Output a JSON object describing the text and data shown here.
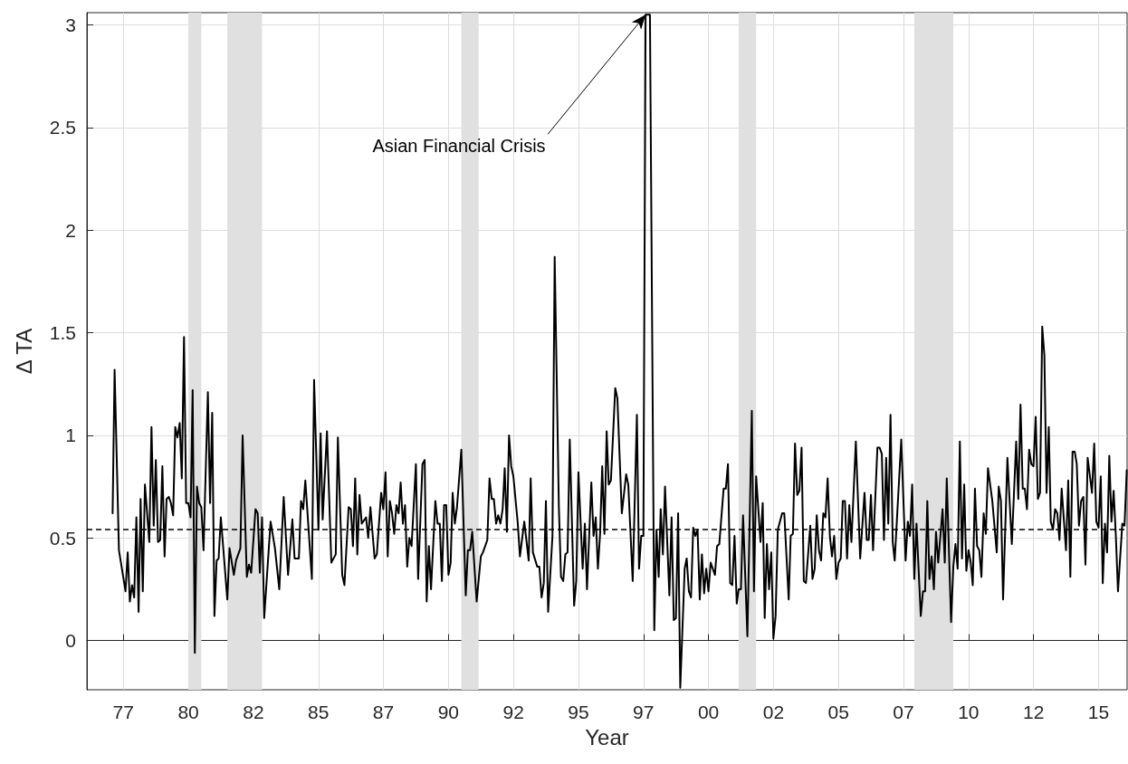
{
  "chart_data": {
    "type": "line",
    "xlabel": "Year",
    "ylabel": "Δ TA",
    "annotations": [
      {
        "text": "Asian Financial Crisis",
        "x": "1997-08",
        "y": 3.05
      }
    ],
    "xlim": [
      "1976-02-06",
      "2016-02-06"
    ],
    "xticks": [
      {
        "value": "1977-07-02",
        "label": "77"
      },
      {
        "value": "1980-01-01",
        "label": "80"
      },
      {
        "value": "1982-07-02",
        "label": "82"
      },
      {
        "value": "1985-01-01",
        "label": "85"
      },
      {
        "value": "1987-07-02",
        "label": "87"
      },
      {
        "value": "1990-01-01",
        "label": "90"
      },
      {
        "value": "1992-07-02",
        "label": "92"
      },
      {
        "value": "1995-01-01",
        "label": "95"
      },
      {
        "value": "1997-07-02",
        "label": "97"
      },
      {
        "value": "2000-01-01",
        "label": "00"
      },
      {
        "value": "2002-07-02",
        "label": "02"
      },
      {
        "value": "2005-01-01",
        "label": "05"
      },
      {
        "value": "2007-07-02",
        "label": "07"
      },
      {
        "value": "2010-01-01",
        "label": "10"
      },
      {
        "value": "2012-07-02",
        "label": "12"
      },
      {
        "value": "2015-01-01",
        "label": "15"
      }
    ],
    "ylim": [
      -0.24,
      3.06
    ],
    "yticks": [
      0,
      0.5,
      1,
      1.5,
      2,
      2.5,
      3
    ],
    "grid": true,
    "marker": "none",
    "line_style": "solid",
    "ref_lines": [
      {
        "axis": "y",
        "value": 0.54,
        "color": "#000000",
        "line_style": "dashed"
      }
    ],
    "bands": [
      {
        "axis": "x",
        "from": "1980-01",
        "to": "1980-07",
        "color": "#e0e0e0"
      },
      {
        "axis": "x",
        "from": "1981-07",
        "to": "1982-11",
        "color": "#e0e0e0"
      },
      {
        "axis": "x",
        "from": "1990-07",
        "to": "1991-03",
        "color": "#e0e0e0"
      },
      {
        "axis": "x",
        "from": "2001-03",
        "to": "2001-11",
        "color": "#e0e0e0"
      },
      {
        "axis": "x",
        "from": "2007-12",
        "to": "2009-06",
        "color": "#e0e0e0"
      }
    ],
    "series": [
      {
        "color": "#000000",
        "x": [
          "1977-02",
          "1977-03",
          "1977-05",
          "1977-08",
          "1977-09",
          "1977-10",
          "1977-11",
          "1977-12",
          "1978-01",
          "1978-02",
          "1978-03",
          "1978-04",
          "1978-05",
          "1978-06",
          "1978-07",
          "1978-08",
          "1978-09",
          "1978-10",
          "1978-11",
          "1978-12",
          "1979-01",
          "1979-02",
          "1979-03",
          "1979-04",
          "1979-05",
          "1979-06",
          "1979-07",
          "1979-08",
          "1979-09",
          "1979-10",
          "1979-11",
          "1979-12",
          "1980-01",
          "1980-02",
          "1980-03",
          "1980-04",
          "1980-05",
          "1980-06",
          "1980-07",
          "1980-08",
          "1980-10",
          "1980-11",
          "1980-12",
          "1981-01",
          "1981-02",
          "1981-03",
          "1981-04",
          "1981-07",
          "1981-08",
          "1981-10",
          "1981-11",
          "1982-01",
          "1982-02",
          "1982-04",
          "1982-05",
          "1982-06",
          "1982-08",
          "1982-09",
          "1982-10",
          "1982-11",
          "1982-12",
          "1983-03",
          "1983-05",
          "1983-07",
          "1983-09",
          "1983-11",
          "1984-01",
          "1984-02",
          "1984-04",
          "1984-05",
          "1984-06",
          "1984-07",
          "1984-10",
          "1984-11",
          "1985-01",
          "1985-02",
          "1985-03",
          "1985-05",
          "1985-07",
          "1985-09",
          "1985-10",
          "1985-12",
          "1986-01",
          "1986-03",
          "1986-04",
          "1986-05",
          "1986-06",
          "1986-07",
          "1986-08",
          "1986-09",
          "1986-11",
          "1986-12",
          "1987-01",
          "1987-03",
          "1987-04",
          "1987-06",
          "1987-07",
          "1987-08",
          "1987-09",
          "1987-10",
          "1987-11",
          "1987-12",
          "1988-01",
          "1988-02",
          "1988-03",
          "1988-04",
          "1988-05",
          "1988-06",
          "1988-07",
          "1988-08",
          "1988-10",
          "1988-11",
          "1989-01",
          "1989-02",
          "1989-03",
          "1989-04",
          "1989-05",
          "1989-07",
          "1989-08",
          "1989-09",
          "1989-10",
          "1989-11",
          "1989-12",
          "1990-01",
          "1990-02",
          "1990-03",
          "1990-04",
          "1990-05",
          "1990-07",
          "1990-09",
          "1990-10",
          "1990-11",
          "1990-12",
          "1991-02",
          "1991-04",
          "1991-05",
          "1991-07",
          "1991-08",
          "1991-09",
          "1991-10",
          "1991-11",
          "1991-12",
          "1992-01",
          "1992-02",
          "1992-03",
          "1992-04",
          "1992-05",
          "1992-06",
          "1992-07",
          "1992-09",
          "1992-10",
          "1992-12",
          "1993-02",
          "1993-03",
          "1993-04",
          "1993-06",
          "1993-07",
          "1993-08",
          "1993-09",
          "1993-10",
          "1993-11",
          "1994-01",
          "1994-02",
          "1994-04",
          "1994-05",
          "1994-06",
          "1994-07",
          "1994-08",
          "1994-09",
          "1994-11",
          "1994-12",
          "1995-01",
          "1995-03",
          "1995-04",
          "1995-05",
          "1995-07",
          "1995-08",
          "1995-09",
          "1995-10",
          "1995-11",
          "1995-12",
          "1996-01",
          "1996-02",
          "1996-03",
          "1996-04",
          "1996-06",
          "1996-07",
          "1996-09",
          "1996-11",
          "1996-12",
          "1997-02",
          "1997-04",
          "1997-05",
          "1997-06",
          "1997-07",
          "1997-08",
          "1997-10",
          "1997-12",
          "1998-01",
          "1998-02",
          "1998-03",
          "1998-04",
          "1998-05",
          "1998-07",
          "1998-08",
          "1998-09",
          "1998-10",
          "1998-11",
          "1998-12",
          "1999-02",
          "1999-03",
          "1999-04",
          "1999-05",
          "1999-06",
          "1999-07",
          "1999-08",
          "1999-09",
          "1999-10",
          "1999-11",
          "1999-12",
          "2000-01",
          "2000-02",
          "2000-04",
          "2000-05",
          "2000-06",
          "2000-08",
          "2000-09",
          "2000-10",
          "2000-11",
          "2000-12",
          "2001-01",
          "2001-02",
          "2001-03",
          "2001-04",
          "2001-05",
          "2001-07",
          "2001-09",
          "2001-10",
          "2001-11",
          "2002-01",
          "2002-02",
          "2002-03",
          "2002-04",
          "2002-05",
          "2002-06",
          "2002-07",
          "2002-08",
          "2002-09",
          "2002-11",
          "2002-12",
          "2003-02",
          "2003-03",
          "2003-04",
          "2003-05",
          "2003-06",
          "2003-07",
          "2003-08",
          "2003-09",
          "2003-10",
          "2003-12",
          "2004-01",
          "2004-02",
          "2004-03",
          "2004-04",
          "2004-05",
          "2004-06",
          "2004-07",
          "2004-08",
          "2004-09",
          "2004-10",
          "2004-11",
          "2004-12",
          "2005-01",
          "2005-02",
          "2005-03",
          "2005-04",
          "2005-05",
          "2005-06",
          "2005-07",
          "2005-09",
          "2005-11",
          "2006-01",
          "2006-02",
          "2006-03",
          "2006-04",
          "2006-05",
          "2006-07",
          "2006-08",
          "2006-09",
          "2006-10",
          "2006-11",
          "2006-12",
          "2007-01",
          "2007-02",
          "2007-03",
          "2007-06",
          "2007-08",
          "2007-09",
          "2007-10",
          "2007-11",
          "2007-12",
          "2008-01",
          "2008-03",
          "2008-04",
          "2008-05",
          "2008-06",
          "2008-07",
          "2008-08",
          "2008-09",
          "2008-10",
          "2008-11",
          "2009-01",
          "2009-02",
          "2009-03",
          "2009-05",
          "2009-06",
          "2009-07",
          "2009-08",
          "2009-09",
          "2009-10",
          "2009-11",
          "2009-12",
          "2010-01",
          "2010-02",
          "2010-03",
          "2010-04",
          "2010-05",
          "2010-06",
          "2010-07",
          "2010-08",
          "2010-09",
          "2010-10",
          "2010-12",
          "2011-02",
          "2011-03",
          "2011-04",
          "2011-05",
          "2011-07",
          "2011-09",
          "2011-11",
          "2011-12",
          "2012-01",
          "2012-02",
          "2012-03",
          "2012-04",
          "2012-05",
          "2012-06",
          "2012-07",
          "2012-08",
          "2012-09",
          "2012-10",
          "2012-11",
          "2012-12",
          "2013-01",
          "2013-02",
          "2013-03",
          "2013-04",
          "2013-05",
          "2013-06",
          "2013-07",
          "2013-08",
          "2013-10",
          "2013-11",
          "2013-12",
          "2014-01",
          "2014-02",
          "2014-03",
          "2014-04",
          "2014-05",
          "2014-06",
          "2014-07",
          "2014-08",
          "2014-10",
          "2014-11",
          "2014-12",
          "2015-01",
          "2015-02",
          "2015-03",
          "2015-04",
          "2015-05",
          "2015-06",
          "2015-07",
          "2015-08",
          "2015-09",
          "2015-10",
          "2015-12",
          "2016-01",
          "2016-02"
        ],
        "values": [
          0.62,
          1.32,
          0.44,
          0.24,
          0.43,
          0.19,
          0.27,
          0.21,
          0.6,
          0.14,
          0.69,
          0.24,
          0.76,
          0.62,
          0.48,
          1.04,
          0.56,
          0.88,
          0.48,
          0.49,
          0.85,
          0.41,
          0.69,
          0.7,
          0.67,
          0.61,
          1.04,
          0.99,
          1.06,
          0.79,
          1.48,
          0.67,
          0.67,
          0.6,
          1.22,
          -0.06,
          0.75,
          0.67,
          0.65,
          0.44,
          1.21,
          0.67,
          1.11,
          0.12,
          0.39,
          0.4,
          0.6,
          0.2,
          0.45,
          0.32,
          0.39,
          0.45,
          1.0,
          0.31,
          0.37,
          0.33,
          0.64,
          0.62,
          0.33,
          0.6,
          0.11,
          0.58,
          0.45,
          0.25,
          0.7,
          0.32,
          0.59,
          0.4,
          0.4,
          0.68,
          0.64,
          0.78,
          0.3,
          1.27,
          0.54,
          1.01,
          0.59,
          1.02,
          0.38,
          0.42,
          0.99,
          0.32,
          0.27,
          0.65,
          0.64,
          0.46,
          0.79,
          0.42,
          0.71,
          0.57,
          0.6,
          0.5,
          0.65,
          0.4,
          0.42,
          0.72,
          0.64,
          0.82,
          0.41,
          0.68,
          0.62,
          0.52,
          0.66,
          0.62,
          0.77,
          0.57,
          0.66,
          0.36,
          0.5,
          0.46,
          0.86,
          0.3,
          0.86,
          0.88,
          0.19,
          0.46,
          0.25,
          0.68,
          0.57,
          0.57,
          0.29,
          0.66,
          0.66,
          0.32,
          0.38,
          0.72,
          0.57,
          0.65,
          0.93,
          0.22,
          0.44,
          0.44,
          0.53,
          0.19,
          0.41,
          0.43,
          0.49,
          0.79,
          0.69,
          0.69,
          0.57,
          0.61,
          0.57,
          0.64,
          0.84,
          0.53,
          1.0,
          0.85,
          0.8,
          0.57,
          0.41,
          0.58,
          0.39,
          0.79,
          0.43,
          0.36,
          0.36,
          0.21,
          0.28,
          0.68,
          0.14,
          0.51,
          1.87,
          0.65,
          0.31,
          0.29,
          0.42,
          0.43,
          0.98,
          0.17,
          0.29,
          0.82,
          0.35,
          0.57,
          0.25,
          0.77,
          0.51,
          0.6,
          0.35,
          0.52,
          0.85,
          0.52,
          1.02,
          0.76,
          0.78,
          1.23,
          1.18,
          0.62,
          0.81,
          0.76,
          0.29,
          1.1,
          0.35,
          0.51,
          0.51,
          3.05,
          3.05,
          0.05,
          0.54,
          0.31,
          0.64,
          0.42,
          0.75,
          0.22,
          0.6,
          0.1,
          0.11,
          0.62,
          -0.23,
          0.35,
          0.4,
          0.24,
          0.21,
          0.55,
          0.51,
          0.54,
          0.2,
          0.42,
          0.23,
          0.35,
          0.24,
          0.38,
          0.32,
          0.46,
          0.47,
          0.74,
          0.74,
          0.86,
          0.28,
          0.27,
          0.51,
          0.18,
          0.25,
          0.25,
          0.61,
          0.02,
          1.12,
          0.24,
          0.8,
          0.48,
          0.67,
          0.11,
          0.47,
          0.25,
          0.43,
          0.01,
          0.12,
          0.54,
          0.62,
          0.62,
          0.2,
          0.51,
          0.52,
          0.96,
          0.71,
          0.73,
          0.94,
          0.29,
          0.28,
          0.56,
          0.3,
          0.35,
          0.61,
          0.44,
          0.39,
          0.62,
          0.6,
          0.79,
          0.51,
          0.41,
          0.51,
          0.3,
          0.38,
          0.4,
          0.68,
          0.68,
          0.4,
          0.66,
          0.48,
          0.97,
          0.4,
          0.72,
          0.49,
          0.49,
          0.71,
          0.44,
          0.94,
          0.94,
          0.91,
          0.49,
          0.89,
          0.57,
          1.1,
          0.48,
          0.39,
          0.98,
          0.39,
          0.58,
          0.51,
          0.76,
          0.3,
          0.57,
          0.12,
          0.24,
          0.24,
          0.68,
          0.3,
          0.41,
          0.25,
          0.53,
          0.38,
          0.64,
          0.38,
          0.79,
          0.09,
          0.36,
          0.47,
          0.35,
          0.97,
          0.4,
          0.76,
          0.34,
          0.44,
          0.38,
          0.27,
          0.74,
          0.46,
          0.44,
          0.31,
          0.62,
          0.52,
          0.84,
          0.68,
          0.43,
          0.75,
          0.68,
          0.2,
          0.89,
          0.47,
          0.97,
          0.69,
          1.15,
          0.74,
          0.74,
          0.64,
          0.93,
          0.86,
          0.85,
          1.09,
          0.69,
          0.72,
          1.53,
          1.39,
          0.72,
          1.04,
          0.58,
          0.54,
          0.64,
          0.62,
          0.49,
          0.74,
          0.44,
          0.78,
          0.31,
          0.92,
          0.92,
          0.86,
          0.56,
          0.68,
          0.7,
          0.37,
          0.89,
          0.72,
          0.96,
          0.58,
          0.55,
          0.8,
          0.28,
          0.57,
          0.43,
          0.9,
          0.58,
          0.73,
          0.51,
          0.24,
          0.57,
          0.56,
          0.83
        ]
      }
    ]
  }
}
